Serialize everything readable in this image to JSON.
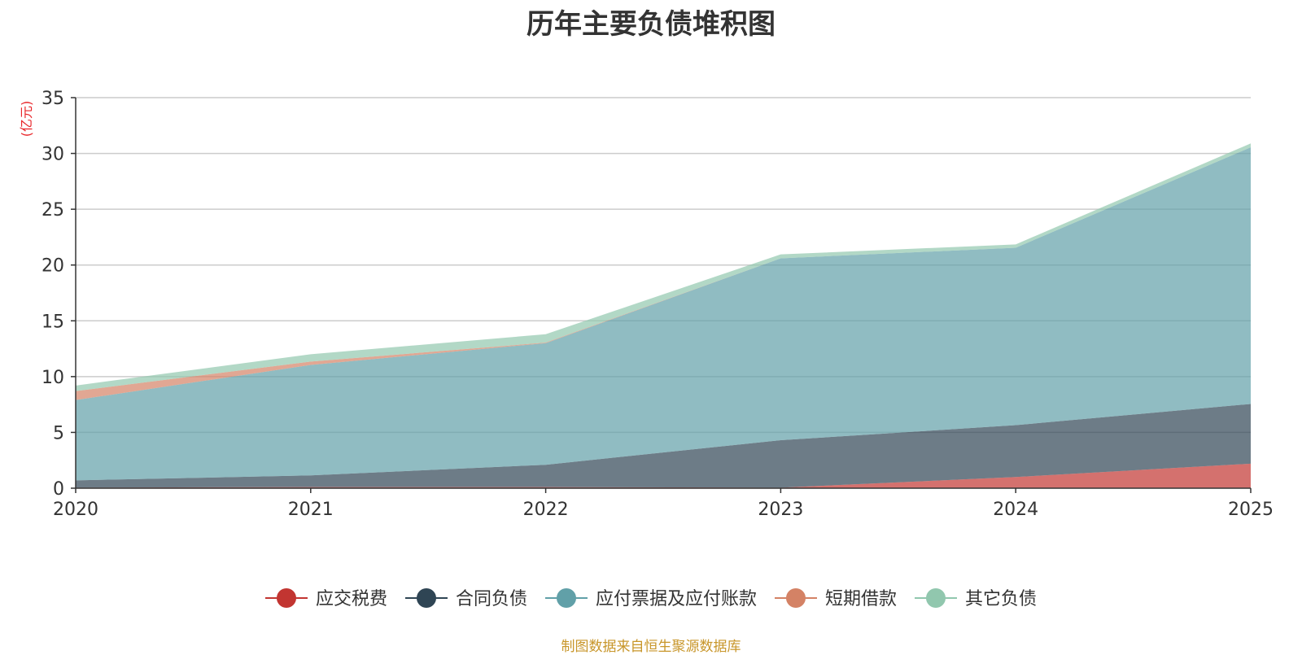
{
  "chart_data": {
    "type": "area",
    "stacked": true,
    "title": "历年主要负债堆积图",
    "unit_label": "(亿元)",
    "xlabel": "",
    "ylabel": "(亿元)",
    "categories": [
      "2020",
      "2021",
      "2022",
      "2023",
      "2024",
      "2025"
    ],
    "ylim": [
      0,
      35
    ],
    "yticks": [
      0,
      5,
      10,
      15,
      20,
      25,
      30,
      35
    ],
    "grid": true,
    "legend_position": "bottom-center",
    "series": [
      {
        "name": "应交税费",
        "color": "#c23531",
        "values": [
          0.05,
          0.1,
          0.1,
          0.05,
          1.0,
          2.2
        ]
      },
      {
        "name": "合同负债",
        "color": "#2f4554",
        "values": [
          0.65,
          1.05,
          2.0,
          4.25,
          4.65,
          5.35
        ]
      },
      {
        "name": "应付票据及应付账款",
        "color": "#61a0a8",
        "values": [
          7.2,
          9.9,
          10.9,
          16.3,
          15.9,
          23.0
        ]
      },
      {
        "name": "短期借款",
        "color": "#d48265",
        "values": [
          0.8,
          0.3,
          0.05,
          0.0,
          0.0,
          0.0
        ]
      },
      {
        "name": "其它负债",
        "color": "#91c7ae",
        "values": [
          0.5,
          0.65,
          0.75,
          0.35,
          0.3,
          0.35
        ]
      }
    ]
  },
  "source_note": "制图数据来自恒生聚源数据库"
}
